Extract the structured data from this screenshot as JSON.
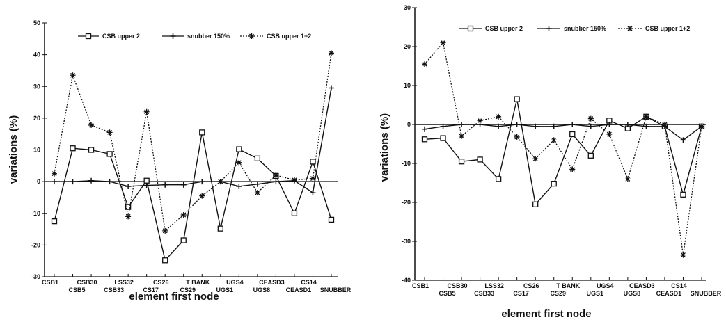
{
  "chart_data": [
    {
      "type": "line",
      "xlabel": "element first node",
      "ylabel": "variations (%)",
      "ylim": [
        -30,
        50
      ],
      "yticks": [
        -30,
        -20,
        -10,
        0,
        10,
        20,
        30,
        40,
        50
      ],
      "legend_position": "top",
      "categories": [
        "CSB1",
        "CSB5",
        "CSB30",
        "CSB33",
        "LSS32",
        "CS17",
        "CS26",
        "CS29",
        "T BANK",
        "UGS1",
        "UGS4",
        "UGS8",
        "CEASD3",
        "CEASD1",
        "CS14",
        "SNUBBER"
      ],
      "series": [
        {
          "name": "CSB upper 2",
          "marker": "square",
          "style": "solid",
          "values": [
            -12.5,
            10.5,
            10,
            8.7,
            -8,
            0.3,
            -24.8,
            -18.5,
            15.5,
            -14.8,
            10.2,
            7.3,
            1.8,
            -10,
            6.3,
            -12
          ]
        },
        {
          "name": "snubber 150%",
          "marker": "plus",
          "style": "solid",
          "values": [
            0,
            0,
            0.3,
            0,
            -1.5,
            -1.2,
            -1,
            -1,
            0,
            0,
            -1.5,
            -0.8,
            0,
            0.3,
            -3.5,
            29.5
          ]
        },
        {
          "name": "CSB upper 1+2",
          "marker": "star",
          "style": "dotted",
          "values": [
            2.5,
            33.5,
            17.8,
            15.5,
            -11,
            22,
            -15.5,
            -10.5,
            -4.5,
            0,
            6,
            -3.5,
            2,
            0.5,
            1,
            40.5
          ]
        }
      ]
    },
    {
      "type": "line",
      "xlabel": "element first node",
      "ylabel": "variations (%)",
      "ylim": [
        -40,
        30
      ],
      "yticks": [
        -40,
        -30,
        -20,
        -10,
        0,
        10,
        20,
        30
      ],
      "legend_position": "top",
      "categories": [
        "CSB1",
        "CSB5",
        "CSB30",
        "CSB33",
        "LSS32",
        "CS17",
        "CS26",
        "CS29",
        "T BANK",
        "UGS1",
        "UGS4",
        "UGS8",
        "CEASD3",
        "CEASD1",
        "CS14",
        "SNUBBER"
      ],
      "series": [
        {
          "name": "CSB upper 2",
          "marker": "square",
          "style": "solid",
          "values": [
            -3.8,
            -3.5,
            -9.5,
            -9,
            -14,
            6.5,
            -20.5,
            -15.2,
            -2.5,
            -8,
            1,
            -1,
            2,
            -0.5,
            -18,
            -0.5
          ]
        },
        {
          "name": "snubber 150%",
          "marker": "plus",
          "style": "solid",
          "values": [
            -1.2,
            -0.5,
            0,
            0,
            -0.5,
            0,
            -0.5,
            -0.5,
            0,
            -0.5,
            0,
            0,
            -0.5,
            -0.5,
            -4,
            -0.5
          ]
        },
        {
          "name": "CSB upper 1+2",
          "marker": "star",
          "style": "dotted",
          "values": [
            15.5,
            21,
            -3,
            1,
            2,
            -3.2,
            -8.8,
            -4,
            -11.5,
            1.5,
            -2.5,
            -14,
            2,
            0,
            -33.5,
            -0.5
          ]
        }
      ]
    }
  ]
}
